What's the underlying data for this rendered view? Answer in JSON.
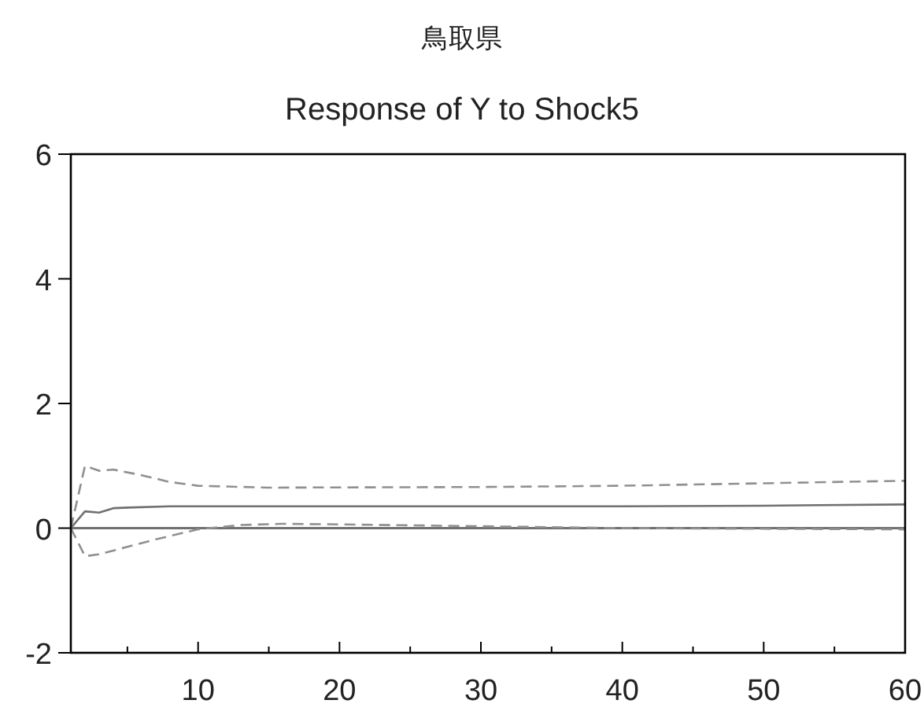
{
  "chart_data": {
    "type": "line",
    "title": "鳥取県",
    "subtitle": "Response of Y to Shock5",
    "xlim": [
      1,
      60
    ],
    "ylim": [
      -2,
      6
    ],
    "xticks": [
      {
        "value": 5,
        "label": null
      },
      10,
      {
        "value": 15,
        "label": null
      },
      20,
      {
        "value": 25,
        "label": null
      },
      30,
      {
        "value": 35,
        "label": null
      },
      40,
      {
        "value": 45,
        "label": null
      },
      50,
      {
        "value": 55,
        "label": null
      },
      60
    ],
    "yticks": [
      -2,
      0,
      2,
      4,
      6
    ],
    "grid": false,
    "ref_lines": [
      {
        "axis": "y",
        "value": 0,
        "color": "#707070",
        "line_style": "solid"
      }
    ],
    "series": [
      {
        "x": [
          1,
          2,
          3,
          4,
          5,
          8,
          15,
          30,
          40,
          50,
          60
        ],
        "values": [
          0,
          0.27,
          0.25,
          0.32,
          0.33,
          0.35,
          0.35,
          0.35,
          0.35,
          0.36,
          0.38
        ],
        "color": "#707070",
        "line_style": "solid"
      },
      {
        "x": [
          1,
          2,
          3,
          4,
          6,
          8,
          10,
          15,
          30,
          40,
          50,
          60
        ],
        "values": [
          0,
          1.0,
          0.92,
          0.94,
          0.85,
          0.74,
          0.68,
          0.65,
          0.66,
          0.68,
          0.72,
          0.76
        ],
        "color": "#909090",
        "line_style": "dashed"
      },
      {
        "x": [
          1,
          2,
          3,
          5,
          7,
          10,
          13,
          16,
          20,
          30,
          40,
          50,
          60
        ],
        "values": [
          0,
          -0.45,
          -0.42,
          -0.3,
          -0.18,
          -0.02,
          0.05,
          0.07,
          0.06,
          0.03,
          0.0,
          -0.01,
          -0.02
        ],
        "color": "#909090",
        "line_style": "dashed"
      }
    ]
  }
}
